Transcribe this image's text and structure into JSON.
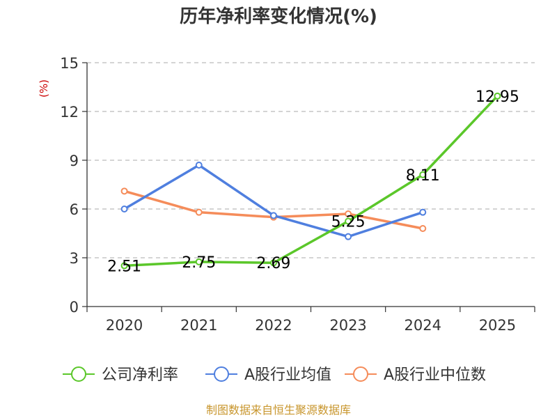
{
  "chart_data": {
    "type": "line",
    "title": "历年净利率变化情况(%)",
    "ylabel": "(%)",
    "xlabel": "",
    "categories": [
      "2020",
      "2021",
      "2022",
      "2023",
      "2024",
      "2025"
    ],
    "ylim": [
      0,
      15
    ],
    "yticks": [
      "0",
      "3",
      "6",
      "9",
      "12",
      "15"
    ],
    "grid": true,
    "legend_position": "bottom",
    "series": [
      {
        "name": "公司净利率",
        "color": "#5bc72a",
        "values": [
          2.51,
          2.75,
          2.69,
          5.25,
          8.11,
          12.95
        ],
        "labels": [
          "2.51",
          "2.75",
          "2.69",
          "5.25",
          "8.11",
          "12.95"
        ]
      },
      {
        "name": "A股行业均值",
        "color": "#4f7fdf",
        "values": [
          6.0,
          8.7,
          5.6,
          4.3,
          5.8,
          null
        ]
      },
      {
        "name": "A股行业中位数",
        "color": "#f58c5a",
        "values": [
          7.1,
          5.8,
          5.5,
          5.7,
          4.8,
          null
        ]
      }
    ],
    "source": "制图数据来自恒生聚源数据库"
  }
}
